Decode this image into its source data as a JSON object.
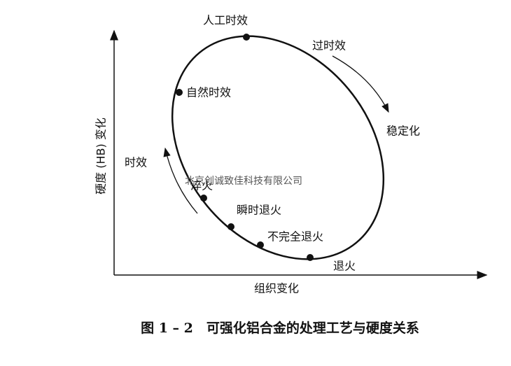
{
  "diagram": {
    "y_axis_label": "硬度 (HB) 变化",
    "x_axis_label": "组织变化",
    "labels": [
      "人工时效",
      "过时效",
      "自然时效",
      "稳定化",
      "时效",
      "淬火",
      "瞬时退火",
      "不完全退火",
      "退火"
    ],
    "watermark": "北京创诚致佳科技有限公司",
    "caption": "图 1 – 2　可强化铝合金的处理工艺与硬度关系"
  }
}
